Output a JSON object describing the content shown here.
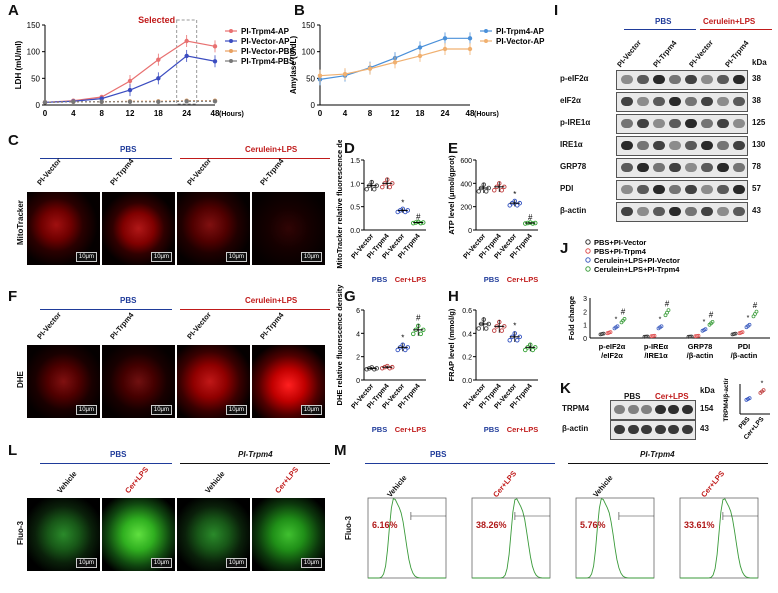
{
  "panels": {
    "A": "A",
    "B": "B",
    "C": "C",
    "D": "D",
    "E": "E",
    "F": "F",
    "G": "G",
    "H": "H",
    "I": "I",
    "J": "J",
    "K": "K",
    "L": "L",
    "M": "M"
  },
  "chart_data": [
    {
      "type": "line",
      "panel": "A",
      "ylabel": "LDH (mU/ml)",
      "xlabel": "(Hours)",
      "categories": [
        "0",
        "4",
        "8",
        "12",
        "18",
        "24",
        "48"
      ],
      "ylim": [
        0,
        150
      ],
      "yticks": [
        0,
        50,
        100,
        150
      ],
      "annotation": "Selected",
      "series": [
        {
          "name": "PI-Trpm4-AP",
          "color": "#e87070",
          "values": [
            5,
            8,
            15,
            45,
            85,
            120,
            110
          ]
        },
        {
          "name": "PI-Vector-AP",
          "color": "#3b4cc0",
          "values": [
            5,
            7,
            12,
            28,
            50,
            92,
            82
          ]
        },
        {
          "name": "PI-Vector-PBS",
          "color": "#e8a060",
          "values": [
            5,
            6,
            6,
            7,
            7,
            8,
            8
          ]
        },
        {
          "name": "PI-Trpm4-PBS",
          "color": "#777777",
          "values": [
            5,
            6,
            6,
            6,
            6,
            7,
            7
          ]
        }
      ]
    },
    {
      "type": "line",
      "panel": "B",
      "ylabel": "Amylase (U/dL)",
      "xlabel": "(Hours)",
      "categories": [
        "0",
        "4",
        "8",
        "12",
        "18",
        "24",
        "48"
      ],
      "ylim": [
        0,
        150
      ],
      "yticks": [
        0,
        50,
        100,
        150
      ],
      "series": [
        {
          "name": "PI-Trpm4-AP",
          "color": "#4a90d9",
          "values": [
            48,
            55,
            70,
            88,
            108,
            125,
            125
          ]
        },
        {
          "name": "PI-Vector-AP",
          "color": "#f0b070",
          "values": [
            55,
            58,
            68,
            80,
            92,
            105,
            105
          ]
        }
      ]
    },
    {
      "type": "scatter",
      "panel": "D",
      "ylabel": "MitoTracker relative fluorescence density",
      "categories": [
        "PI-Vector",
        "PI-Trpm4",
        "PI-Vector",
        "PI-Trpm4"
      ],
      "ylim": [
        0,
        1.5
      ],
      "yticks": [
        "0.0",
        "0.5",
        "1.0",
        "1.5"
      ],
      "means": [
        0.95,
        1.0,
        0.42,
        0.16
      ],
      "marks": [
        "",
        "",
        "*",
        "#"
      ]
    },
    {
      "type": "scatter",
      "panel": "E",
      "ylabel": "ATP level (μmol/gprot)",
      "categories": [
        "PI-Vector",
        "PI-Trpm4",
        "PI-Vector",
        "PI-Trpm4"
      ],
      "ylim": [
        0,
        600
      ],
      "yticks": [
        "0",
        "200",
        "400",
        "600"
      ],
      "means": [
        360,
        370,
        230,
        60
      ],
      "marks": [
        "",
        "",
        "*",
        "#"
      ]
    },
    {
      "type": "scatter",
      "panel": "G",
      "ylabel": "DHE relative fluorescence density",
      "categories": [
        "PI-Vector",
        "PI-Trpm4",
        "PI-Vector",
        "PI-Trpm4"
      ],
      "ylim": [
        0,
        6
      ],
      "yticks": [
        "0",
        "2",
        "4",
        "6"
      ],
      "means": [
        1.0,
        1.1,
        2.8,
        4.3
      ],
      "marks": [
        "",
        "",
        "*",
        "#"
      ]
    },
    {
      "type": "scatter",
      "panel": "H",
      "ylabel": "FRAP level (mmol/g)",
      "categories": [
        "PI-Vector",
        "PI-Trpm4",
        "PI-Vector",
        "PI-Trpm4"
      ],
      "ylim": [
        0.0,
        0.6
      ],
      "yticks": [
        "0.0",
        "0.2",
        "0.4",
        "0.6"
      ],
      "means": [
        0.48,
        0.46,
        0.37,
        0.28
      ],
      "marks": [
        "",
        "",
        "*",
        ""
      ]
    },
    {
      "type": "scatter",
      "panel": "J",
      "ylabel": "Fold change",
      "categories": [
        "p-eIF2α /eIF2α",
        "p-IREα /IRE1α",
        "GRP78 /β-actin",
        "PDI /β-actin"
      ],
      "ylim": [
        0,
        3
      ],
      "yticks": [
        "0",
        "1",
        "2",
        "3"
      ],
      "series": [
        {
          "name": "PBS+PI-Vector",
          "color": "#333333",
          "values": [
            0.3,
            0.1,
            0.1,
            0.3
          ]
        },
        {
          "name": "PBS+PI-Trpm4",
          "color": "#e05050",
          "values": [
            0.4,
            0.15,
            0.15,
            0.4
          ]
        },
        {
          "name": "Cerulein+LPS+PI-Vector",
          "color": "#4060c0",
          "values": [
            0.8,
            0.8,
            0.6,
            0.9
          ]
        },
        {
          "name": "Cerulein+LPS+PI-Trpm4",
          "color": "#40a040",
          "values": [
            1.3,
            1.9,
            1.1,
            1.8
          ]
        }
      ]
    },
    {
      "type": "scatter",
      "panel": "K",
      "ylabel": "TRPM4/β-actin",
      "categories": [
        "PBS",
        "Cer+LPS"
      ],
      "ylim": [
        0,
        2
      ],
      "yticks": [
        "0.0",
        "0.5",
        "1.0",
        "1.5",
        "2.0"
      ],
      "means": [
        1.0,
        1.5
      ],
      "marks": [
        "",
        "*"
      ]
    }
  ],
  "groups": {
    "pbs": "PBS",
    "cer_lps": "Cerulein+LPS",
    "cer_lps_short": "Cer+LPS",
    "pi_trpm4": "PI-Trpm4",
    "vehicle": "Vehicle",
    "pi_vector": "PI-Vector"
  },
  "side_labels": {
    "mito": "MitoTracker",
    "dhe": "DHE",
    "fluo": "Fluo-3"
  },
  "scale_bar": "10μm",
  "blot_I": {
    "kda_label": "kDa",
    "rows": [
      {
        "name": "p-eIF2α",
        "kda": "38"
      },
      {
        "name": "eIF2α",
        "kda": "38"
      },
      {
        "name": "p-IRE1α",
        "kda": "125"
      },
      {
        "name": "IRE1α",
        "kda": "130"
      },
      {
        "name": "GRP78",
        "kda": "78"
      },
      {
        "name": "PDI",
        "kda": "57"
      },
      {
        "name": "β-actin",
        "kda": "43"
      }
    ]
  },
  "blot_K": {
    "kda_label": "kDa",
    "rows": [
      {
        "name": "TRPM4",
        "kda": "154"
      },
      {
        "name": "β-actin",
        "kda": "43"
      }
    ]
  },
  "flow_M": [
    "6.16%",
    "38.26%",
    "5.76%",
    "33.61%"
  ]
}
